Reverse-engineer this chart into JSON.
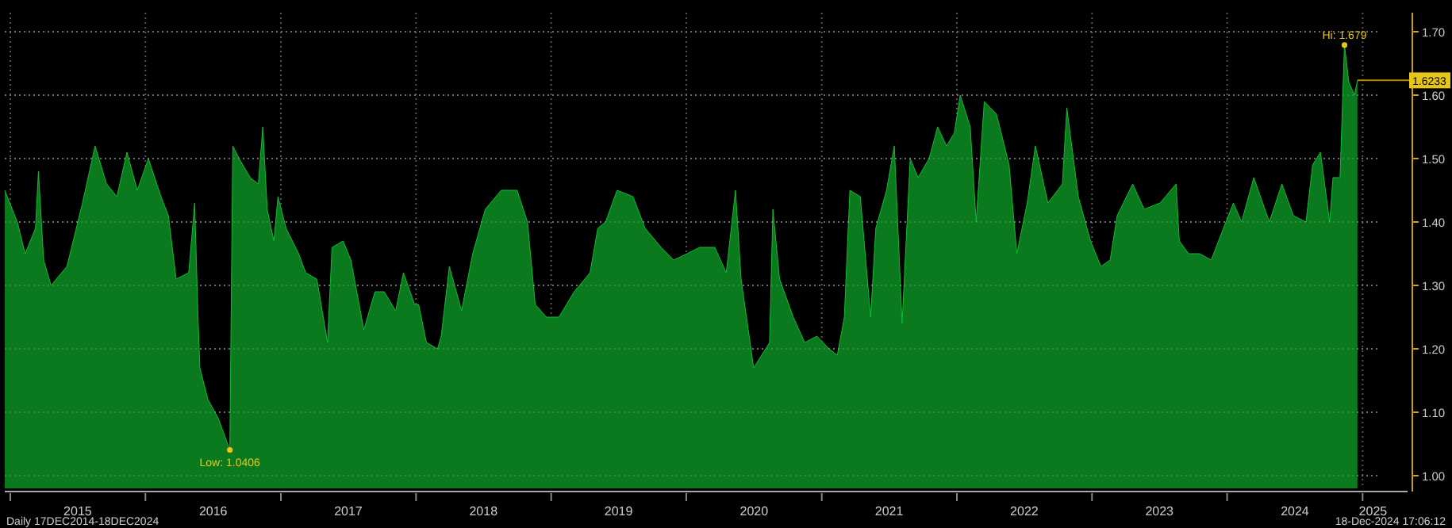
{
  "chart_data": {
    "type": "area",
    "x": [
      "2014-12-17",
      "2015-01-20",
      "2015-02-10",
      "2015-03-10",
      "2015-03-18",
      "2015-04-01",
      "2015-04-21",
      "2015-06-03",
      "2015-07-15",
      "2015-08-18",
      "2015-09-18",
      "2015-10-16",
      "2015-11-12",
      "2015-12-10",
      "2016-01-09",
      "2016-02-12",
      "2016-03-03",
      "2016-03-24",
      "2016-04-27",
      "2016-05-13",
      "2016-05-22",
      "2016-05-27",
      "2016-06-18",
      "2016-07-16",
      "2016-08-16",
      "2016-08-24",
      "2016-09-10",
      "2016-10-10",
      "2016-11-01",
      "2016-11-13",
      "2016-11-25",
      "2016-12-13",
      "2016-12-24",
      "2017-01-15",
      "2017-02-18",
      "2017-03-09",
      "2017-04-08",
      "2017-05-07",
      "2017-05-19",
      "2017-06-18",
      "2017-07-09",
      "2017-08-13",
      "2017-09-12",
      "2017-10-07",
      "2017-11-07",
      "2017-11-28",
      "2017-12-28",
      "2018-01-08",
      "2018-01-29",
      "2018-02-28",
      "2018-03-10",
      "2018-04-01",
      "2018-05-04",
      "2018-06-03",
      "2018-07-07",
      "2018-08-19",
      "2018-10-01",
      "2018-10-29",
      "2018-11-19",
      "2018-12-19",
      "2019-01-22",
      "2019-03-04",
      "2019-04-16",
      "2019-05-07",
      "2019-05-28",
      "2019-06-28",
      "2019-08-10",
      "2019-09-12",
      "2019-10-25",
      "2019-11-28",
      "2020-01-03",
      "2020-02-06",
      "2020-03-18",
      "2020-04-18",
      "2020-05-13",
      "2020-05-28",
      "2020-07-01",
      "2020-08-13",
      "2020-08-22",
      "2020-09-09",
      "2020-10-16",
      "2020-11-16",
      "2020-12-19",
      "2021-01-21",
      "2021-02-12",
      "2021-03-03",
      "2021-03-18",
      "2021-04-15",
      "2021-05-13",
      "2021-05-27",
      "2021-06-25",
      "2021-07-16",
      "2021-08-06",
      "2021-08-28",
      "2021-09-18",
      "2021-10-18",
      "2021-11-10",
      "2021-12-04",
      "2021-12-25",
      "2022-01-10",
      "2022-02-06",
      "2022-02-22",
      "2022-03-16",
      "2022-04-18",
      "2022-05-22",
      "2022-06-12",
      "2022-07-10",
      "2022-08-01",
      "2022-09-04",
      "2022-10-13",
      "2022-10-25",
      "2022-11-25",
      "2022-12-28",
      "2023-01-25",
      "2023-02-19",
      "2023-03-10",
      "2023-04-21",
      "2023-05-22",
      "2023-07-04",
      "2023-08-16",
      "2023-08-25",
      "2023-09-19",
      "2023-10-19",
      "2023-11-19",
      "2023-12-22",
      "2024-01-18",
      "2024-02-09",
      "2024-03-13",
      "2024-04-24",
      "2024-05-28",
      "2024-06-28",
      "2024-08-01",
      "2024-08-19",
      "2024-09-09",
      "2024-10-04",
      "2024-10-13",
      "2024-11-01",
      "2024-11-13",
      "2024-11-25",
      "2024-12-10",
      "2024-12-18"
    ],
    "series": [
      {
        "color": "#0b7a1f",
        "values": [
          1.45,
          1.4,
          1.35,
          1.39,
          1.48,
          1.34,
          1.3,
          1.33,
          1.43,
          1.52,
          1.46,
          1.44,
          1.51,
          1.45,
          1.5,
          1.44,
          1.41,
          1.31,
          1.32,
          1.43,
          1.25,
          1.17,
          1.12,
          1.09,
          1.0406,
          1.52,
          1.5,
          1.47,
          1.46,
          1.55,
          1.42,
          1.37,
          1.44,
          1.39,
          1.35,
          1.32,
          1.31,
          1.21,
          1.36,
          1.37,
          1.34,
          1.23,
          1.29,
          1.29,
          1.26,
          1.32,
          1.27,
          1.27,
          1.21,
          1.2,
          1.22,
          1.33,
          1.26,
          1.35,
          1.42,
          1.45,
          1.45,
          1.4,
          1.27,
          1.25,
          1.25,
          1.29,
          1.32,
          1.39,
          1.4,
          1.45,
          1.44,
          1.39,
          1.36,
          1.34,
          1.35,
          1.36,
          1.36,
          1.32,
          1.45,
          1.31,
          1.17,
          1.21,
          1.42,
          1.31,
          1.25,
          1.21,
          1.22,
          1.2,
          1.19,
          1.25,
          1.45,
          1.44,
          1.25,
          1.39,
          1.45,
          1.52,
          1.24,
          1.5,
          1.47,
          1.5,
          1.55,
          1.52,
          1.54,
          1.6,
          1.55,
          1.4,
          1.59,
          1.57,
          1.49,
          1.35,
          1.43,
          1.52,
          1.43,
          1.46,
          1.58,
          1.44,
          1.37,
          1.33,
          1.34,
          1.41,
          1.46,
          1.42,
          1.43,
          1.46,
          1.37,
          1.35,
          1.35,
          1.34,
          1.39,
          1.43,
          1.4,
          1.47,
          1.4,
          1.46,
          1.41,
          1.4,
          1.49,
          1.51,
          1.4,
          1.47,
          1.47,
          1.679,
          1.62,
          1.6,
          1.6233
        ]
      }
    ],
    "xlim": [
      "2014-12-17",
      "2025-02-10"
    ],
    "xticks": [
      {
        "value": "2015-01-01",
        "label": null
      },
      {
        "value": "2015-07-02",
        "label": "2015"
      },
      {
        "value": "2016-01-01",
        "label": null
      },
      {
        "value": "2016-07-02",
        "label": "2016"
      },
      {
        "value": "2017-01-01",
        "label": null
      },
      {
        "value": "2017-07-02",
        "label": "2017"
      },
      {
        "value": "2018-01-01",
        "label": null
      },
      {
        "value": "2018-07-02",
        "label": "2018"
      },
      {
        "value": "2019-01-01",
        "label": null
      },
      {
        "value": "2019-07-02",
        "label": "2019"
      },
      {
        "value": "2020-01-01",
        "label": null
      },
      {
        "value": "2020-07-02",
        "label": "2020"
      },
      {
        "value": "2021-01-01",
        "label": null
      },
      {
        "value": "2021-07-02",
        "label": "2021"
      },
      {
        "value": "2022-01-01",
        "label": null
      },
      {
        "value": "2022-07-02",
        "label": "2022"
      },
      {
        "value": "2023-01-01",
        "label": null
      },
      {
        "value": "2023-07-02",
        "label": "2023"
      },
      {
        "value": "2024-01-01",
        "label": null
      },
      {
        "value": "2024-07-02",
        "label": "2024"
      },
      {
        "value": "2025-01-01",
        "label": null
      },
      {
        "value": "2025-01-29",
        "label": "2025"
      }
    ],
    "ylim": [
      0.98,
      1.73
    ],
    "yticks": [
      {
        "value": 1.0,
        "label": "1.00"
      },
      {
        "value": 1.1,
        "label": "1.10"
      },
      {
        "value": 1.2,
        "label": "1.20"
      },
      {
        "value": 1.3,
        "label": "1.30"
      },
      {
        "value": 1.4,
        "label": "1.40"
      },
      {
        "value": 1.5,
        "label": "1.50"
      },
      {
        "value": 1.6,
        "label": "1.60"
      },
      {
        "value": 1.7,
        "label": "1.70"
      }
    ],
    "grid": true,
    "annotations": [
      {
        "text": "Low: 1.0406",
        "x": "2016-08-16",
        "y": 1.0406
      },
      {
        "text": "Hi: 1.679",
        "x": "2024-11-13",
        "y": 1.679
      },
      {
        "text": "1.6233",
        "x": "2024-12-18",
        "y": 1.6233
      },
      "Daily 17DEC2014-18DEC2024",
      "18-Dec-2024 17:06:12"
    ]
  }
}
